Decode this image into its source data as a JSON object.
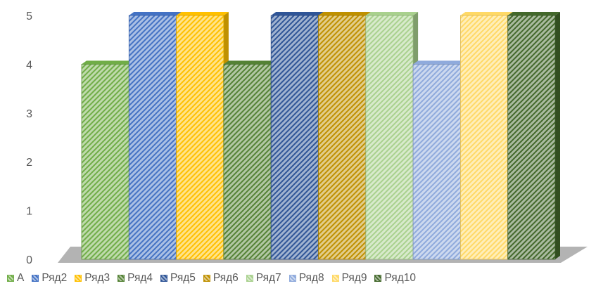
{
  "chart_data": {
    "type": "bar",
    "categories": [
      ""
    ],
    "series": [
      {
        "name": "A",
        "values": [
          4
        ],
        "color": "#70ad47"
      },
      {
        "name": "Ряд2",
        "values": [
          5
        ],
        "color": "#4472c4"
      },
      {
        "name": "Ряд3",
        "values": [
          5
        ],
        "color": "#ffc000"
      },
      {
        "name": "Ряд4",
        "values": [
          4
        ],
        "color": "#548235"
      },
      {
        "name": "Ряд5",
        "values": [
          5
        ],
        "color": "#2f5597"
      },
      {
        "name": "Ряд6",
        "values": [
          5
        ],
        "color": "#bf9000"
      },
      {
        "name": "Ряд7",
        "values": [
          5
        ],
        "color": "#a9d18e"
      },
      {
        "name": "Ряд8",
        "values": [
          4
        ],
        "color": "#8faadc"
      },
      {
        "name": "Ряд9",
        "values": [
          5
        ],
        "color": "#ffd966"
      },
      {
        "name": "Ряд10",
        "values": [
          5
        ],
        "color": "#43682b"
      }
    ],
    "y_ticks": [
      "0",
      "1",
      "2",
      "3",
      "4",
      "5"
    ],
    "ylim": [
      0,
      5
    ],
    "grid": false,
    "legend_position": "bottom",
    "fill_pattern": "diagonal-stripes",
    "style": "3d-column"
  }
}
